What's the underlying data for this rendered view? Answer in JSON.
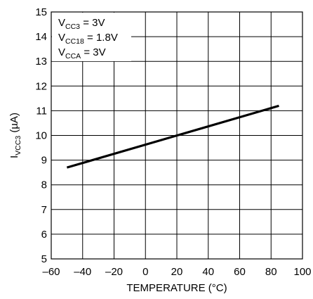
{
  "chart_data": {
    "type": "line",
    "title": "",
    "xlabel": "TEMPERATURE (°C)",
    "ylabel": {
      "main": "I",
      "sub": "VCC3",
      "rest": " (µA)"
    },
    "xlim": [
      -60,
      100
    ],
    "ylim": [
      5,
      15
    ],
    "xticks": [
      "–60",
      "–40",
      "–20",
      "0",
      "20",
      "40",
      "60",
      "80",
      "100"
    ],
    "yticks": [
      "5",
      "6",
      "7",
      "8",
      "9",
      "10",
      "11",
      "12",
      "13",
      "14",
      "15"
    ],
    "grid": true,
    "series": [
      {
        "x": [
          -50,
          85
        ],
        "y": [
          8.7,
          11.2
        ]
      }
    ],
    "conditions": [
      {
        "main": "V",
        "sub": "CC3",
        "rest": " = 3V"
      },
      {
        "main": "V",
        "sub": "CC18",
        "rest": " = 1.8V"
      },
      {
        "main": "V",
        "sub": "CCA",
        "rest": " = 3V"
      }
    ],
    "colors": {
      "line": "#000000",
      "grid": "#000000",
      "background": "#ffffff"
    }
  }
}
